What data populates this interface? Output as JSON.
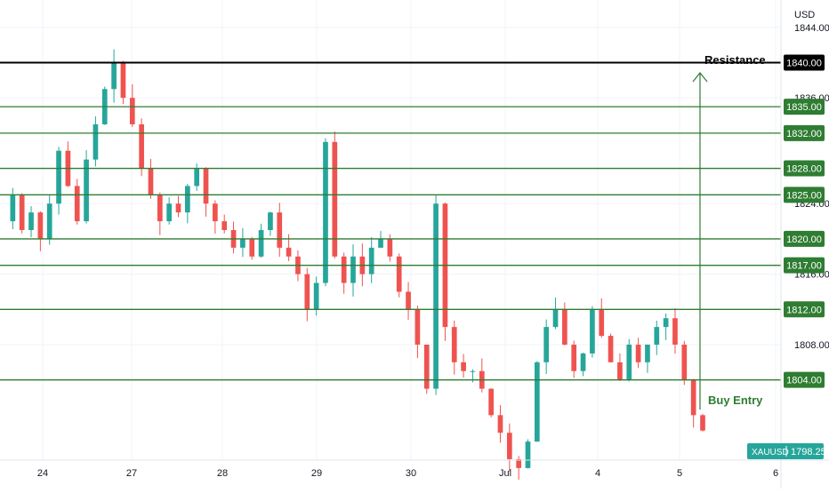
{
  "chart_data": {
    "type": "candlestick",
    "symbol": "XAUUSD",
    "currency_label": "USD",
    "last_price": "1798.25",
    "y_range": [
      1795.5,
      1846.5
    ],
    "y_ticks": [
      {
        "value": 1844,
        "label": "1844.00"
      },
      {
        "value": 1836,
        "label": "1836.00"
      },
      {
        "value": 1824,
        "label": "1824.00"
      },
      {
        "value": 1816,
        "label": "1816.00"
      },
      {
        "value": 1808,
        "label": "1808.00"
      }
    ],
    "x_ticks": [
      "24",
      "27",
      "28",
      "29",
      "30",
      "Jul",
      "4",
      "5",
      "6"
    ],
    "resistance": {
      "value": 1840,
      "label": "1840.00",
      "annotation": "Resistance",
      "color": "#000000"
    },
    "levels": [
      {
        "value": 1835,
        "label": "1835.00"
      },
      {
        "value": 1832,
        "label": "1832.00"
      },
      {
        "value": 1828,
        "label": "1828.00"
      },
      {
        "value": 1825,
        "label": "1825.00"
      },
      {
        "value": 1820,
        "label": "1820.00"
      },
      {
        "value": 1817,
        "label": "1817.00"
      },
      {
        "value": 1812,
        "label": "1812.00"
      },
      {
        "value": 1804,
        "label": "1804.00"
      }
    ],
    "buy_entry": {
      "value": 1804,
      "annotation": "Buy Entry"
    },
    "colors": {
      "up": "#26a69a",
      "down": "#ef5350",
      "level": "#2e7d32",
      "resistance": "#000000",
      "grid": "#f0f3fa",
      "axis_text": "#131722"
    },
    "price_path": [
      1822,
      1825,
      1821,
      1823,
      1820,
      1824,
      1830,
      1826,
      1822,
      1829,
      1833,
      1837,
      1840,
      1836,
      1833,
      1828,
      1825,
      1822,
      1824,
      1823,
      1826,
      1828,
      1824,
      1822,
      1821,
      1819,
      1820,
      1818,
      1821,
      1823,
      1819,
      1818,
      1816,
      1812,
      1815,
      1831,
      1818,
      1815,
      1818,
      1816,
      1819,
      1820,
      1818,
      1814,
      1812,
      1808,
      1803,
      1824,
      1810,
      1806,
      1805,
      1805,
      1803,
      1800,
      1798,
      1795,
      1794,
      1797,
      1806,
      1810,
      1812,
      1808,
      1805,
      1807,
      1812,
      1809,
      1806,
      1804,
      1808,
      1806,
      1808,
      1810,
      1811,
      1808,
      1804,
      1800,
      1798.25
    ]
  }
}
